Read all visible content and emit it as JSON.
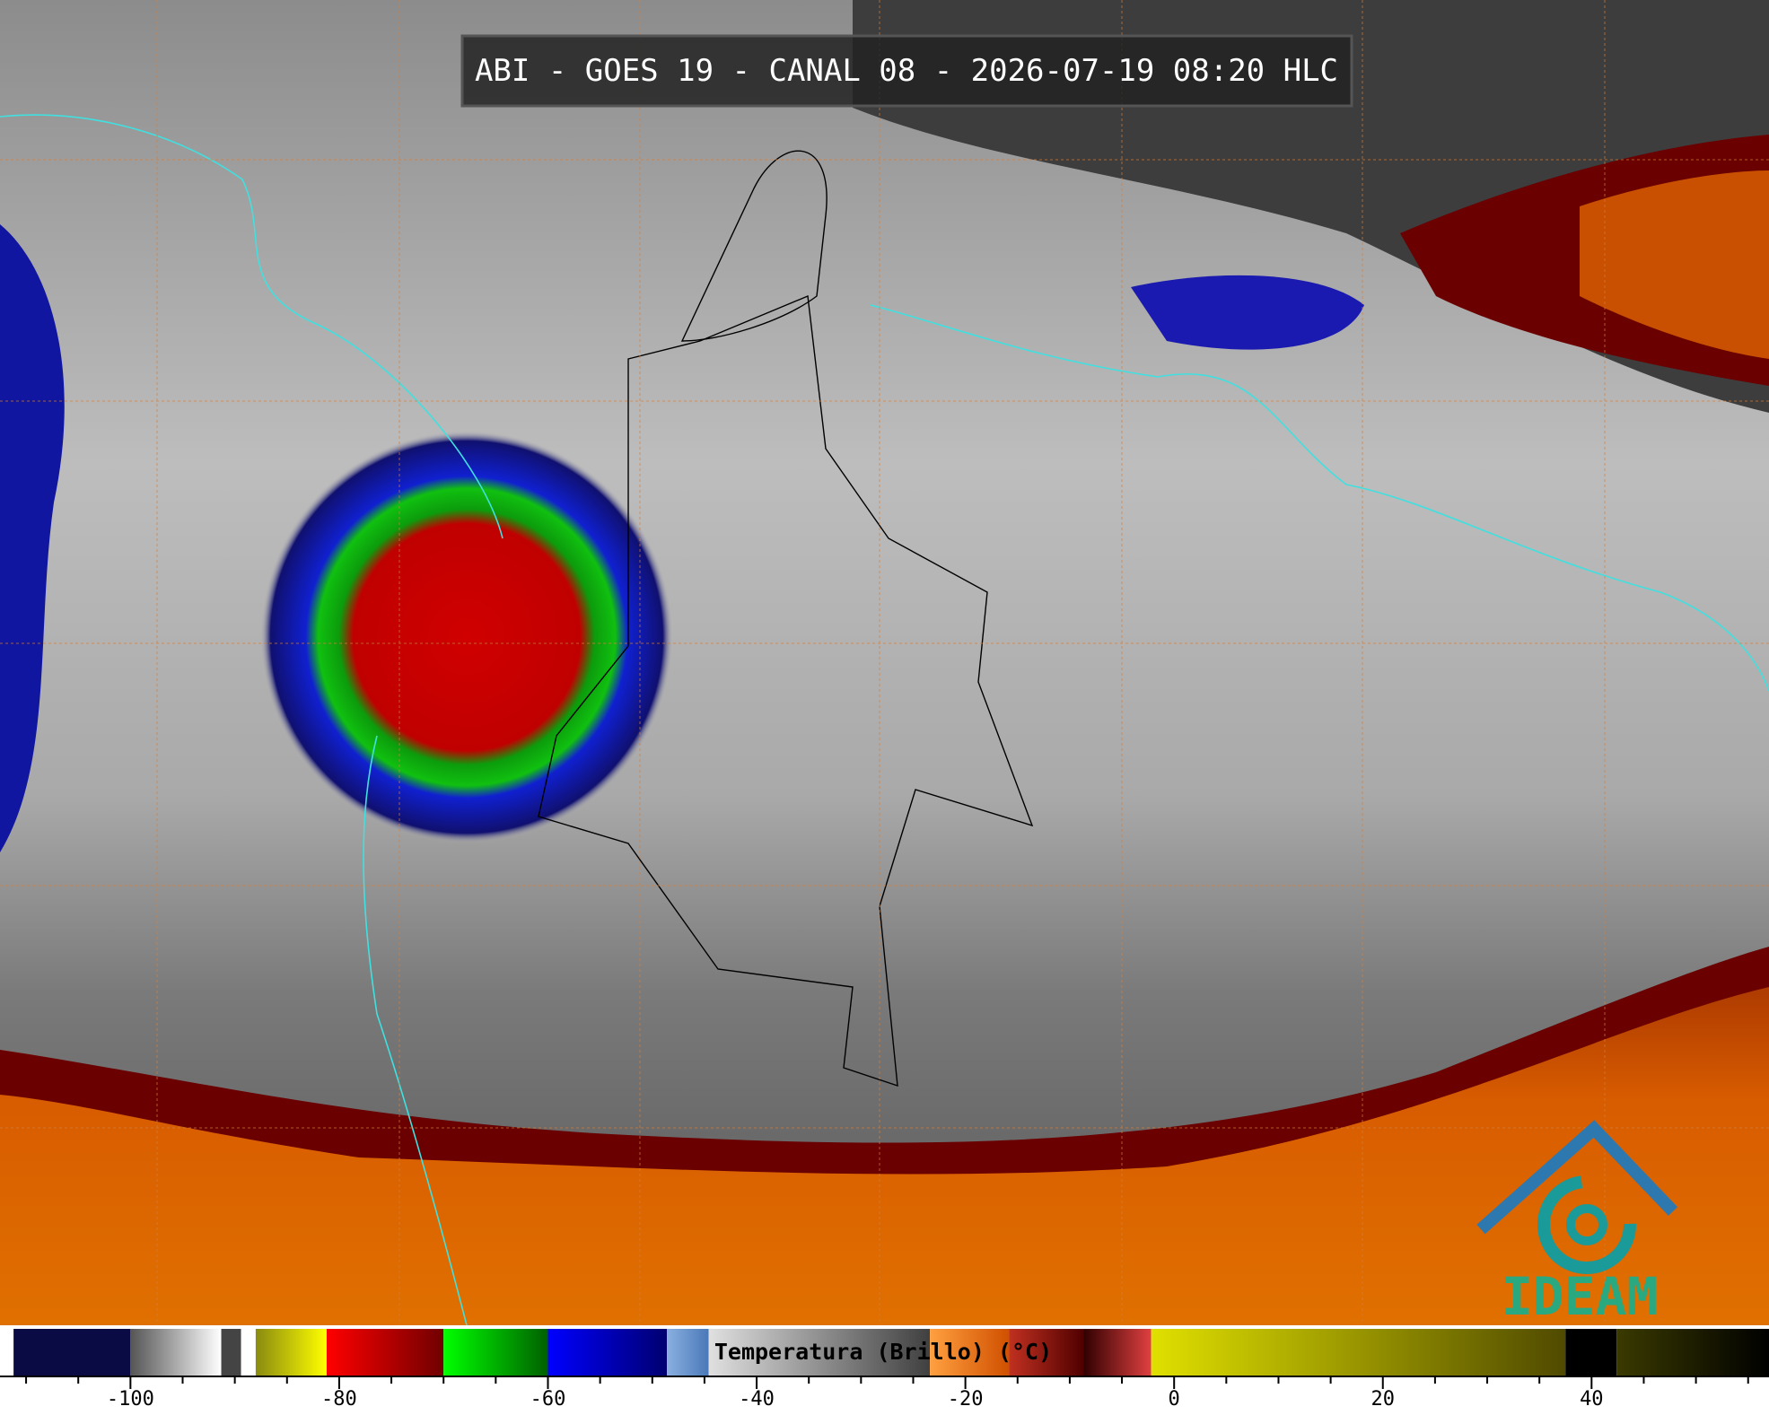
{
  "header": {
    "title": "ABI - GOES 19 - CANAL 08 - 2026-07-19 08:20 HLC"
  },
  "logo": {
    "text": "IDEAM"
  },
  "colorbar": {
    "label": "Temperatura (Brillo) (°C)",
    "range": [
      -112.5,
      57
    ],
    "ticks": [
      -100,
      -80,
      -60,
      -40,
      -20,
      0,
      20,
      40
    ],
    "minor_ticks": [
      -110,
      -105,
      -95,
      -90,
      -85,
      -75,
      -70,
      -65,
      -55,
      -50,
      -45,
      -35,
      -30,
      -25,
      -15,
      -10,
      -5,
      5,
      10,
      15,
      25,
      30,
      35,
      45,
      50,
      55
    ],
    "stops": [
      {
        "from": -112.5,
        "to": -111.2,
        "colors": [
          "#ffffff",
          "#ffffff"
        ]
      },
      {
        "from": -111.2,
        "to": -100,
        "colors": [
          "#0a0a45",
          "#0a0a45"
        ]
      },
      {
        "from": -100,
        "to": -91.3,
        "colors": [
          "#555555",
          "#ffffff"
        ]
      },
      {
        "from": -91.3,
        "to": -89.4,
        "colors": [
          "#444444",
          "#444444"
        ]
      },
      {
        "from": -89.4,
        "to": -88,
        "colors": [
          "#ffffff",
          "#ffffff"
        ]
      },
      {
        "from": -88,
        "to": -81.2,
        "colors": [
          "#8a8a10",
          "#ffff00"
        ]
      },
      {
        "from": -81.2,
        "to": -70,
        "colors": [
          "#ff0000",
          "#700000"
        ]
      },
      {
        "from": -70,
        "to": -60,
        "colors": [
          "#00ff00",
          "#006000"
        ]
      },
      {
        "from": -60,
        "to": -48.6,
        "colors": [
          "#0000ff",
          "#000070"
        ]
      },
      {
        "from": -48.6,
        "to": -44.6,
        "colors": [
          "#8ab0e0",
          "#4a78b8"
        ]
      },
      {
        "from": -44.6,
        "to": -23.4,
        "colors": [
          "#e0e0e0",
          "#404040"
        ]
      },
      {
        "from": -23.4,
        "to": -15.8,
        "colors": [
          "#ffa040",
          "#d05000"
        ]
      },
      {
        "from": -15.8,
        "to": -8.7,
        "colors": [
          "#c03020",
          "#500000"
        ]
      },
      {
        "from": -8.7,
        "to": -2.2,
        "colors": [
          "#300000",
          "#e04040"
        ]
      },
      {
        "from": -2.2,
        "to": 37.5,
        "colors": [
          "#e0e000",
          "#504a00"
        ]
      },
      {
        "from": 37.5,
        "to": 42.4,
        "colors": [
          "#000000",
          "#000000"
        ]
      },
      {
        "from": 42.4,
        "to": 57,
        "colors": [
          "#3a3a00",
          "#000000"
        ]
      }
    ]
  }
}
